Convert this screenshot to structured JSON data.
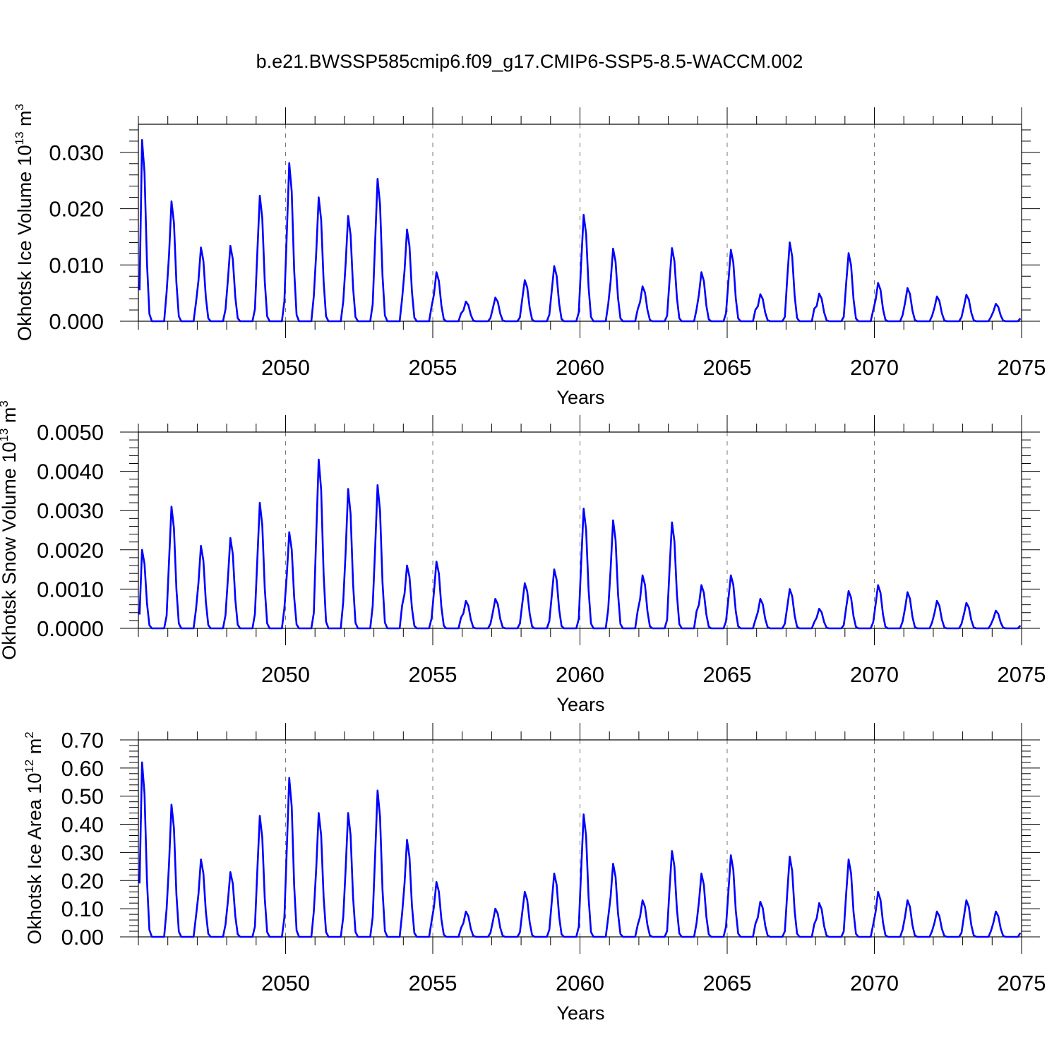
{
  "title": "b.e21.BWSSP585cmip6.f09_g17.CMIP6-SSP5-8.5-WACCM.002",
  "colors": {
    "line": "#0000ff",
    "axis": "#000000",
    "grid": "#777777"
  },
  "chart_data": [
    {
      "type": "line",
      "ylabel": {
        "text": "Okhotsk Ice Volume 10",
        "exp": "13",
        "unit": " m",
        "unit_exp": "3"
      },
      "xlabel": "Years",
      "xlim": [
        2045,
        2075
      ],
      "ylim": [
        0,
        0.035
      ],
      "yticks": [
        0,
        0.01,
        0.02,
        0.03
      ],
      "ytick_labels": [
        "0.000",
        "0.010",
        "0.020",
        "0.030"
      ],
      "xticks": [
        2050,
        2055,
        2060,
        2065,
        2070,
        2075
      ],
      "xtick_labels": [
        "2050",
        "2055",
        "2060",
        "2065",
        "2070",
        "2075"
      ],
      "grid": "dashed vertical at major x ticks",
      "series": [
        {
          "start_year": 2045,
          "monthly_from": "jan",
          "peaks_by_year": [
            0.0322,
            0.0213,
            0.0131,
            0.0134,
            0.0223,
            0.0281,
            0.022,
            0.0187,
            0.0253,
            0.0163,
            0.0087,
            0.0035,
            0.0042,
            0.0073,
            0.0098,
            0.0189,
            0.0129,
            0.0062,
            0.013,
            0.0087,
            0.0127,
            0.0048,
            0.014,
            0.0049,
            0.0121,
            0.0068,
            0.0059,
            0.0044,
            0.0047,
            0.0031
          ],
          "first_value": 0.0055
        }
      ]
    },
    {
      "type": "line",
      "ylabel": {
        "text": "Okhotsk Snow Volume 10",
        "exp": "13",
        "unit": " m",
        "unit_exp": "3"
      },
      "xlabel": "Years",
      "xlim": [
        2045,
        2075
      ],
      "ylim": [
        0,
        0.005
      ],
      "yticks": [
        0,
        0.001,
        0.002,
        0.003,
        0.004,
        0.005
      ],
      "ytick_labels": [
        "0.0000",
        "0.0010",
        "0.0020",
        "0.0030",
        "0.0040",
        "0.0050"
      ],
      "xticks": [
        2050,
        2055,
        2060,
        2065,
        2070,
        2075
      ],
      "xtick_labels": [
        "2050",
        "2055",
        "2060",
        "2065",
        "2070",
        "2075"
      ],
      "grid": "dashed vertical at major x ticks",
      "series": [
        {
          "start_year": 2045,
          "monthly_from": "jan",
          "peaks_by_year": [
            0.002,
            0.0031,
            0.0021,
            0.0023,
            0.0032,
            0.00245,
            0.0043,
            0.00355,
            0.00365,
            0.0016,
            0.0017,
            0.0007,
            0.00075,
            0.00115,
            0.0015,
            0.00305,
            0.00275,
            0.00135,
            0.0027,
            0.0011,
            0.00135,
            0.00075,
            0.001,
            0.0005,
            0.00095,
            0.0011,
            0.00092,
            0.0007,
            0.00065,
            0.00045
          ],
          "first_value": 0.00035
        }
      ]
    },
    {
      "type": "line",
      "ylabel": {
        "text": "Okhotsk Ice Area 10",
        "exp": "12",
        "unit": " m",
        "unit_exp": "2"
      },
      "xlabel": "Years",
      "xlim": [
        2045,
        2075
      ],
      "ylim": [
        0,
        0.7
      ],
      "yticks": [
        0,
        0.1,
        0.2,
        0.3,
        0.4,
        0.5,
        0.6,
        0.7
      ],
      "ytick_labels": [
        "0.00",
        "0.10",
        "0.20",
        "0.30",
        "0.40",
        "0.50",
        "0.60",
        "0.70"
      ],
      "xticks": [
        2050,
        2055,
        2060,
        2065,
        2070,
        2075
      ],
      "xtick_labels": [
        "2050",
        "2055",
        "2060",
        "2065",
        "2070",
        "2075"
      ],
      "grid": "dashed vertical at major x ticks",
      "series": [
        {
          "start_year": 2045,
          "monthly_from": "jan",
          "peaks_by_year": [
            0.62,
            0.47,
            0.275,
            0.23,
            0.43,
            0.565,
            0.44,
            0.44,
            0.52,
            0.345,
            0.195,
            0.09,
            0.1,
            0.16,
            0.225,
            0.435,
            0.26,
            0.13,
            0.305,
            0.225,
            0.29,
            0.125,
            0.285,
            0.12,
            0.275,
            0.16,
            0.13,
            0.09,
            0.13,
            0.09
          ],
          "first_value": 0.19
        }
      ]
    }
  ]
}
